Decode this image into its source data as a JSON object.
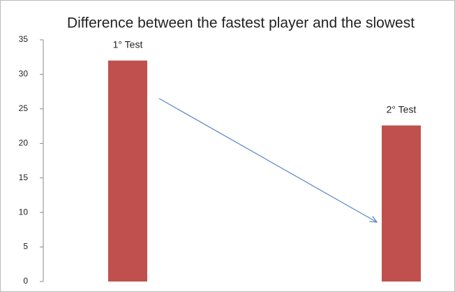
{
  "chart_data": {
    "type": "bar",
    "title": "Difference between the fastest player and the slowest",
    "categories": [
      "1° Test",
      "2° Test"
    ],
    "values": [
      32,
      22.6
    ],
    "color": "#c0504d",
    "ylim": [
      0,
      35
    ],
    "yticks": [
      0,
      5,
      10,
      15,
      20,
      25,
      30,
      35
    ]
  }
}
